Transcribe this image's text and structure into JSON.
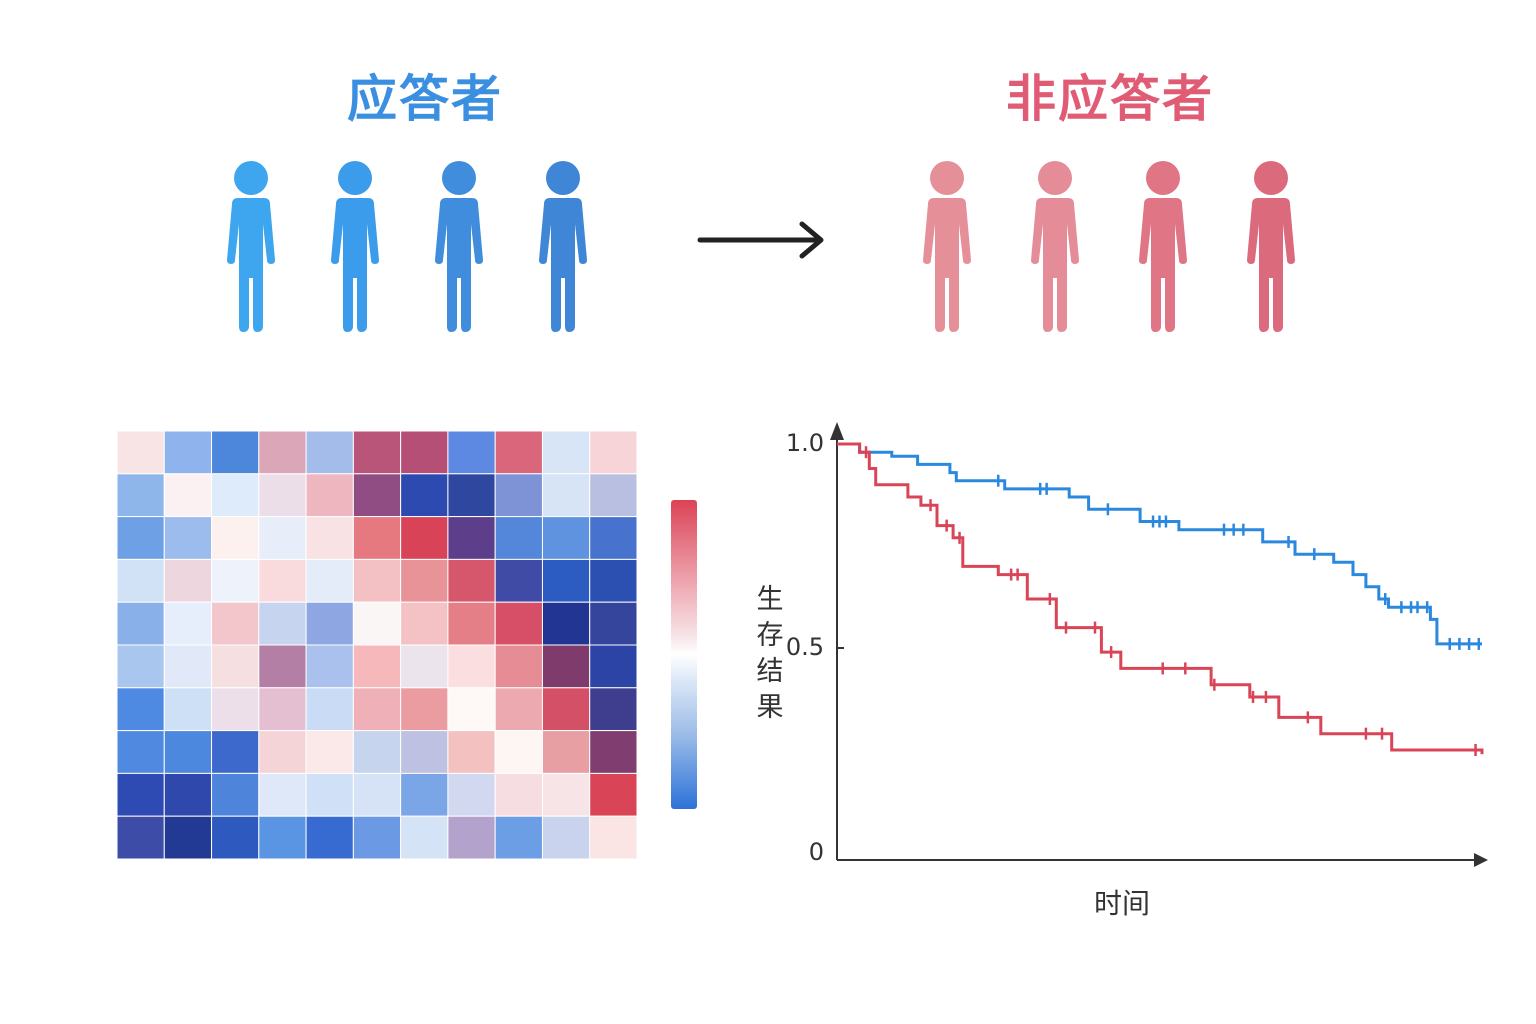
{
  "groups": {
    "responders": {
      "title": "应答者",
      "color": "#3a8fe0",
      "figures": [
        "#3ea6ee",
        "#3b9ceb",
        "#3f8ddc",
        "#3f86d6"
      ]
    },
    "non_responders": {
      "title": "非应答者",
      "color": "#e05c74",
      "figures": [
        "#e59099",
        "#e48c97",
        "#e07585",
        "#dc6a7d"
      ]
    }
  },
  "heatmap": {
    "rows": 10,
    "cols": 11,
    "colorbar_colors": [
      "#db4356",
      "#ffffff",
      "#2d72d9"
    ],
    "cells": [
      [
        "#f8e4e4",
        "#8fb3ec",
        "#4d87dc",
        "#dba6b8",
        "#a4bce9",
        "#b85578",
        "#b54f75",
        "#5d89e3",
        "#d9667a",
        "#d8e5f6",
        "#f6d4d8"
      ],
      [
        "#8fb6eb",
        "#fcf1f2",
        "#deebfa",
        "#ecdee8",
        "#eeb6bf",
        "#8f4d84",
        "#2c4aaf",
        "#30479f",
        "#7e93d6",
        "#d6e4f6",
        "#b9bfe1"
      ],
      [
        "#6ea0e6",
        "#9bbcec",
        "#fdf1ef",
        "#e7eef9",
        "#f9e2e3",
        "#e6797f",
        "#d84358",
        "#5d3e8b",
        "#5486da",
        "#5f93e0",
        "#4772cd"
      ],
      [
        "#d1e2f6",
        "#eed6df",
        "#eef2fb",
        "#f9dbde",
        "#e4ecf9",
        "#f3c1c4",
        "#e89398",
        "#d6566c",
        "#3f4ba5",
        "#2c5cc1",
        "#2c50b2"
      ],
      [
        "#8ab0e9",
        "#e6eefb",
        "#f2c6cb",
        "#c7d4f0",
        "#8ea7e3",
        "#fbf6f6",
        "#f4c2c5",
        "#e47f88",
        "#d64f66",
        "#233593",
        "#36459c"
      ],
      [
        "#a9c6ef",
        "#e1e9f8",
        "#f5dfe1",
        "#b47fa5",
        "#a9c1ec",
        "#f6b8bb",
        "#ece4ec",
        "#fbdfe0",
        "#e58c94",
        "#7f3b6b",
        "#2b44a6"
      ],
      [
        "#4f8ae2",
        "#cde0f6",
        "#eddfe9",
        "#e3bfd1",
        "#c9dbf5",
        "#efb1b7",
        "#eb9ca1",
        "#fef9f7",
        "#ecaab0",
        "#d35066",
        "#3f3e8e"
      ],
      [
        "#4f8ae0",
        "#4b88de",
        "#3d69cc",
        "#f4d4d7",
        "#fbe8e9",
        "#c7d4ee",
        "#bfc1e2",
        "#f4c1c1",
        "#fdf6f3",
        "#e79fa4",
        "#803d6f"
      ],
      [
        "#2d4bb2",
        "#2f48ab",
        "#4f84db",
        "#dfe8f8",
        "#cfe0f7",
        "#d6e2f6",
        "#7aa5e6",
        "#d1d8ef",
        "#f5dde1",
        "#f7e4e6",
        "#d94556"
      ],
      [
        "#3d4da7",
        "#233a94",
        "#2e5ac0",
        "#5a95e3",
        "#386bd2",
        "#6c99e3",
        "#d5e3f6",
        "#b3a2cb",
        "#6c9ee6",
        "#c9d3ee",
        "#fbe4e4"
      ]
    ]
  },
  "chart_data": {
    "type": "line",
    "xlabel": "时间",
    "ylabel": "生存结果",
    "xlim": [
      0,
      100
    ],
    "ylim": [
      0,
      1
    ],
    "yticks": [
      {
        "value": 0,
        "label": "0"
      },
      {
        "value": 0.5,
        "label": "0.5"
      },
      {
        "value": 1.0,
        "label": "1.0"
      }
    ],
    "series": [
      {
        "color": "#2a88de",
        "points": [
          [
            3.5,
            0.98
          ],
          [
            8.5,
            0.97
          ],
          [
            12.5,
            0.95
          ],
          [
            17.5,
            0.93
          ],
          [
            18.5,
            0.91
          ],
          [
            26,
            0.89
          ],
          [
            36,
            0.87
          ],
          [
            39,
            0.84
          ],
          [
            47,
            0.81
          ],
          [
            53,
            0.79
          ],
          [
            66,
            0.76
          ],
          [
            71,
            0.73
          ],
          [
            77,
            0.71
          ],
          [
            80,
            0.68
          ],
          [
            82,
            0.65
          ],
          [
            84,
            0.62
          ],
          [
            85.5,
            0.6
          ],
          [
            92,
            0.57
          ],
          [
            93,
            0.51
          ],
          [
            100,
            0.51
          ]
        ],
        "censor_x": [
          25,
          31.5,
          32.5,
          42,
          49,
          50,
          51,
          60,
          61.5,
          63,
          70,
          74,
          85,
          87.5,
          89,
          90,
          91.5,
          95,
          96.5,
          98,
          99.5
        ]
      },
      {
        "color": "#d94556",
        "points": [
          [
            3.5,
            0.98
          ],
          [
            5,
            0.94
          ],
          [
            6,
            0.9
          ],
          [
            11,
            0.87
          ],
          [
            13,
            0.85
          ],
          [
            15.5,
            0.8
          ],
          [
            18,
            0.77
          ],
          [
            19.5,
            0.7
          ],
          [
            25,
            0.68
          ],
          [
            29.5,
            0.62
          ],
          [
            34,
            0.55
          ],
          [
            41,
            0.49
          ],
          [
            44,
            0.45
          ],
          [
            58,
            0.41
          ],
          [
            64,
            0.38
          ],
          [
            68.5,
            0.33
          ],
          [
            75,
            0.29
          ],
          [
            86,
            0.25
          ],
          [
            100,
            0.24
          ]
        ],
        "censor_x": [
          4.5,
          14.5,
          17,
          19,
          27,
          28,
          33,
          35.5,
          40,
          42.5,
          50.5,
          54,
          58.5,
          64.5,
          66.5,
          73,
          82,
          84.5,
          99
        ]
      }
    ]
  }
}
